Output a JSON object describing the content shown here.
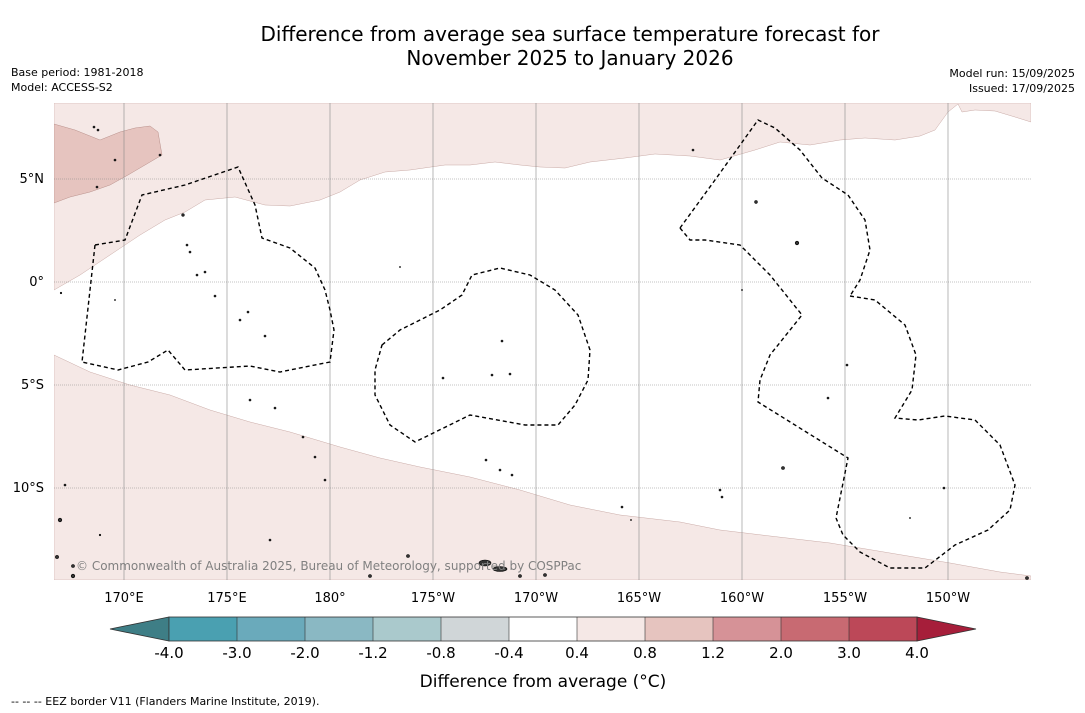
{
  "title": {
    "line1": "Difference from average sea surface temperature forecast for",
    "line2": "November 2025 to January 2026"
  },
  "meta_left": {
    "base_period": "Base period: 1981-2018",
    "model": "Model: ACCESS-S2"
  },
  "meta_right": {
    "model_run": "Model run: 15/09/2025",
    "issued": "Issued: 17/09/2025"
  },
  "map": {
    "lon_labels": [
      "170°E",
      "175°E",
      "180°",
      "175°W",
      "170°W",
      "165°W",
      "160°W",
      "155°W",
      "150°W"
    ],
    "lat_labels": [
      "5°N",
      "0°",
      "5°S",
      "10°S"
    ],
    "copyright": "© Commonwealth of Australia 2025, Bureau of Meteorology, supported by COSPPac",
    "colors": {
      "anom_0_4_0_8": "#f5e8e6",
      "anom_0_8_1_2": "#e6c4bf"
    }
  },
  "colorbar": {
    "ticks": [
      "-4.0",
      "-3.0",
      "-2.0",
      "-1.2",
      "-0.8",
      "-0.4",
      "0.4",
      "0.8",
      "1.2",
      "2.0",
      "3.0",
      "4.0"
    ],
    "label": "Difference from average (°C)",
    "colors": [
      "#3e7e86",
      "#4aa0b1",
      "#6aaabb",
      "#8ab8c3",
      "#aac9cc",
      "#d0d6d8",
      "#ffffff",
      "#f5e8e6",
      "#e6c4bf",
      "#d69297",
      "#c86a72",
      "#bc4858",
      "#a61e3a"
    ]
  },
  "footer": {
    "eez_note": "--  --  -- EEZ border V11 (Flanders Marine Institute, 2019)."
  }
}
